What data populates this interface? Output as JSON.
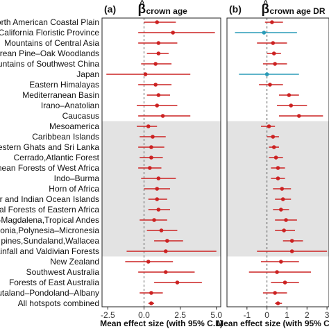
{
  "chart_data": {
    "type": "forest",
    "hotspot_labels": [
      "orth American Coastal Plain",
      "California Floristic Province",
      "Mountains of Central Asia",
      "drean Pine–Oak Woodlands",
      "untains of Southwest China",
      "Japan",
      "Eastern Himalayas",
      "Mediterranean Basin",
      "Irano–Anatolian",
      "Caucasus",
      "Mesoamerica",
      "Caribbean Islands",
      "estern Ghats and Sri Lanka",
      "Cerrado,Atlantic Forest",
      "nean Forests of West Africa",
      "Indo–Burma",
      "Horn of Africa",
      "ar and Indian Ocean Islands",
      "al Forests of Eastern Africa",
      "–Magdalena,Tropical Andes",
      "donia,Polynesia–Micronesia",
      "pines,Sundaland,Wallacea",
      "ainfall and Valdivian Forests",
      "New Zealand",
      "Southwest Australia",
      "Forests of East Australia",
      "utaland–Pondoland–Albany",
      "All hotspots combined"
    ],
    "shaded_rows": {
      "from": 10,
      "to": 22
    },
    "colors": {
      "significant": "#cc2222",
      "nonsignificant": "#2a9bb8",
      "shade": "#e3e3e3",
      "zero_line": "#555555"
    },
    "panels": [
      {
        "letter": "(a)",
        "title_symbol": "β",
        "title_sub": "crown age",
        "xlabel": "Mean effect size (with 95% C.I.)",
        "xlim": [
          -2.9,
          5.3
        ],
        "xticks": [
          -2.5,
          0.0,
          2.5,
          5.0
        ],
        "xtick_labels": [
          "-2.5",
          "0.0",
          "2.5",
          "5.0"
        ],
        "points": [
          {
            "est": 0.9,
            "lo": 0.0,
            "hi": 2.2,
            "sig": true
          },
          {
            "est": 2.0,
            "lo": -0.4,
            "hi": 4.9,
            "sig": true
          },
          {
            "est": 1.0,
            "lo": -0.4,
            "hi": 2.3,
            "sig": true
          },
          {
            "est": 1.0,
            "lo": 0.2,
            "hi": 1.7,
            "sig": true
          },
          {
            "est": 0.8,
            "lo": -0.2,
            "hi": 1.9,
            "sig": true
          },
          {
            "est": 0.1,
            "lo": -2.6,
            "hi": 3.2,
            "sig": true
          },
          {
            "est": 0.8,
            "lo": -0.4,
            "hi": 1.9,
            "sig": true
          },
          {
            "est": 1.0,
            "lo": 0.2,
            "hi": 1.8,
            "sig": true
          },
          {
            "est": 0.9,
            "lo": -0.5,
            "hi": 2.3,
            "sig": true
          },
          {
            "est": 1.3,
            "lo": -0.4,
            "hi": 3.2,
            "sig": true
          },
          {
            "est": 0.3,
            "lo": -0.5,
            "hi": 0.9,
            "sig": true
          },
          {
            "est": 0.6,
            "lo": -0.3,
            "hi": 1.5,
            "sig": true
          },
          {
            "est": 0.5,
            "lo": -0.4,
            "hi": 1.4,
            "sig": true
          },
          {
            "est": 0.5,
            "lo": -0.3,
            "hi": 1.3,
            "sig": true
          },
          {
            "est": 0.4,
            "lo": -0.4,
            "hi": 1.2,
            "sig": true
          },
          {
            "est": 1.0,
            "lo": -0.2,
            "hi": 2.2,
            "sig": true
          },
          {
            "est": 0.9,
            "lo": 0.0,
            "hi": 1.8,
            "sig": true
          },
          {
            "est": 0.9,
            "lo": 0.3,
            "hi": 1.6,
            "sig": true
          },
          {
            "est": 1.0,
            "lo": 0.3,
            "hi": 1.8,
            "sig": true
          },
          {
            "est": 0.7,
            "lo": -0.3,
            "hi": 1.6,
            "sig": true
          },
          {
            "est": 1.2,
            "lo": 0.2,
            "hi": 2.3,
            "sig": true
          },
          {
            "est": 1.6,
            "lo": 0.7,
            "hi": 2.7,
            "sig": true
          },
          {
            "est": 1.5,
            "lo": -1.2,
            "hi": 5.0,
            "sig": true
          },
          {
            "est": 0.3,
            "lo": -1.3,
            "hi": 2.0,
            "sig": true
          },
          {
            "est": 1.5,
            "lo": -0.4,
            "hi": 3.5,
            "sig": true
          },
          {
            "est": 2.3,
            "lo": 0.7,
            "hi": 4.0,
            "sig": true
          },
          {
            "est": 0.5,
            "lo": -0.3,
            "hi": 1.3,
            "sig": true
          },
          {
            "est": 0.5,
            "lo": 0.3,
            "hi": 0.7,
            "sig": true
          }
        ]
      },
      {
        "letter": "(b)",
        "title_symbol": "β",
        "title_sub": "crown age DR",
        "xlabel": "Mean effect size (with 95% C.I.)",
        "xlim": [
          -2.0,
          3.1
        ],
        "xticks": [
          -1,
          0,
          1,
          2,
          3
        ],
        "xtick_labels": [
          "-1",
          "0",
          "1",
          "2",
          "3"
        ],
        "points": [
          {
            "est": 0.25,
            "lo": -0.1,
            "hi": 0.8,
            "sig": true
          },
          {
            "est": -0.15,
            "lo": -1.6,
            "hi": 1.5,
            "sig": false
          },
          {
            "est": 0.3,
            "lo": -0.5,
            "hi": 1.0,
            "sig": true
          },
          {
            "est": 0.35,
            "lo": 0.0,
            "hi": 0.7,
            "sig": true
          },
          {
            "est": 0.4,
            "lo": -0.2,
            "hi": 1.0,
            "sig": true
          },
          {
            "est": 0.0,
            "lo": -1.4,
            "hi": 1.6,
            "sig": false
          },
          {
            "est": 0.15,
            "lo": -0.4,
            "hi": 0.8,
            "sig": true
          },
          {
            "est": 1.1,
            "lo": 0.6,
            "hi": 1.6,
            "sig": true
          },
          {
            "est": 1.2,
            "lo": 0.5,
            "hi": 2.0,
            "sig": true
          },
          {
            "est": 1.6,
            "lo": 0.6,
            "hi": 2.8,
            "sig": true
          },
          {
            "est": 0.1,
            "lo": -0.3,
            "hi": 0.4,
            "sig": true
          },
          {
            "est": 0.3,
            "lo": 0.0,
            "hi": 0.6,
            "sig": true
          },
          {
            "est": 0.35,
            "lo": 0.1,
            "hi": 0.6,
            "sig": true
          },
          {
            "est": 0.45,
            "lo": 0.1,
            "hi": 0.8,
            "sig": true
          },
          {
            "est": 0.55,
            "lo": 0.2,
            "hi": 0.9,
            "sig": true
          },
          {
            "est": 0.55,
            "lo": 0.2,
            "hi": 0.9,
            "sig": true
          },
          {
            "est": 0.75,
            "lo": 0.3,
            "hi": 1.2,
            "sig": true
          },
          {
            "est": 0.8,
            "lo": 0.4,
            "hi": 1.2,
            "sig": true
          },
          {
            "est": 0.7,
            "lo": 0.3,
            "hi": 1.1,
            "sig": true
          },
          {
            "est": 0.95,
            "lo": 0.4,
            "hi": 1.5,
            "sig": true
          },
          {
            "est": 0.85,
            "lo": 0.4,
            "hi": 1.4,
            "sig": true
          },
          {
            "est": 1.25,
            "lo": 0.8,
            "hi": 1.8,
            "sig": true
          },
          {
            "est": 1.25,
            "lo": -0.5,
            "hi": 3.0,
            "sig": true
          },
          {
            "est": 0.7,
            "lo": -0.3,
            "hi": 1.6,
            "sig": true
          },
          {
            "est": 0.5,
            "lo": -0.9,
            "hi": 2.2,
            "sig": true
          },
          {
            "est": 0.9,
            "lo": 0.2,
            "hi": 1.6,
            "sig": true
          },
          {
            "est": 0.4,
            "lo": -0.2,
            "hi": 1.0,
            "sig": true
          },
          {
            "est": 0.55,
            "lo": 0.4,
            "hi": 0.75,
            "sig": true
          }
        ]
      }
    ]
  }
}
